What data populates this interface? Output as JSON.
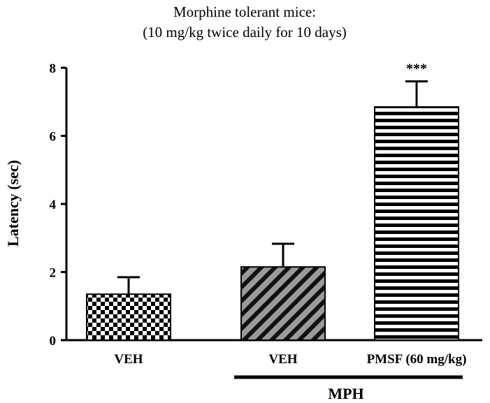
{
  "chart_data": {
    "type": "bar",
    "title": "Morphine tolerant mice:",
    "subtitle": "(10 mg/kg twice daily for 10 days)",
    "xlabel": "",
    "ylabel": "Latency (sec)",
    "ylim": [
      0,
      8
    ],
    "yticks": [
      "0",
      "2",
      "4",
      "6",
      "8"
    ],
    "grid": false,
    "categories": [
      "VEH",
      "VEH",
      "PMSF (60 mg/kg)"
    ],
    "values": [
      1.35,
      2.15,
      6.85
    ],
    "errors": [
      0.5,
      0.68,
      0.75
    ],
    "patterns": [
      "checker",
      "diagonal",
      "horizontal-stripes"
    ],
    "significance": [
      "",
      "",
      "***"
    ],
    "group_label": "MPH",
    "group_indices": [
      1,
      2
    ]
  }
}
